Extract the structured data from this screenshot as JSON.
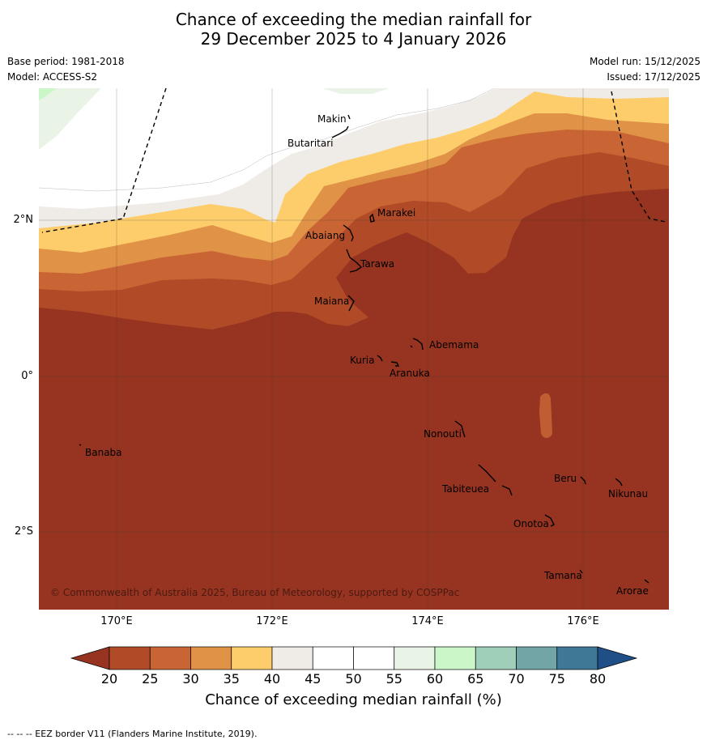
{
  "title_line1": "Chance of exceeding the median rainfall for",
  "title_line2": "29 December 2025 to 4 January 2026",
  "base_period": "Base period: 1981-2018",
  "model": "Model: ACCESS-S2",
  "model_run": "Model run: 15/12/2025",
  "issued": "Issued: 17/12/2025",
  "lat_ticks": [
    "2°N",
    "0°",
    "2°S"
  ],
  "lon_ticks": [
    "170°E",
    "172°E",
    "174°E",
    "176°E"
  ],
  "places": [
    "Makin",
    "Butaritari",
    "Marakei",
    "Abaiang",
    "Tarawa",
    "Maiana",
    "Abemama",
    "Kuria",
    "Aranuka",
    "Nonouti",
    "Banaba",
    "Beru",
    "Nikunau",
    "Tabiteuea",
    "Onotoa",
    "Tamana",
    "Arorae"
  ],
  "copyright": "© Commonwealth of Australia 2025, Bureau of Meteorology, supported by COSPPac",
  "colorbar": {
    "title": "Chance of exceeding median rainfall (%)",
    "labels": [
      "20",
      "25",
      "30",
      "35",
      "40",
      "45",
      "50",
      "55",
      "60",
      "65",
      "70",
      "75",
      "80"
    ],
    "colors": {
      "below20": "#963421",
      "c20_25": "#b04a27",
      "c25_30": "#c96535",
      "c30_35": "#e09346",
      "c35_40": "#fdcd6c",
      "c40_45": "#efebe6",
      "c45_50": "#ffffff",
      "c50_55": "#ffffff",
      "c55_60": "#e9f4e7",
      "c60_65": "#cbf7c8",
      "c65_70": "#9fcfb8",
      "c70_75": "#72a6a6",
      "c75_80": "#3f7796",
      "above80": "#1f4f86"
    }
  },
  "footer": "--  --  -- EEZ border V11 (Flanders Marine Institute, 2019)."
}
